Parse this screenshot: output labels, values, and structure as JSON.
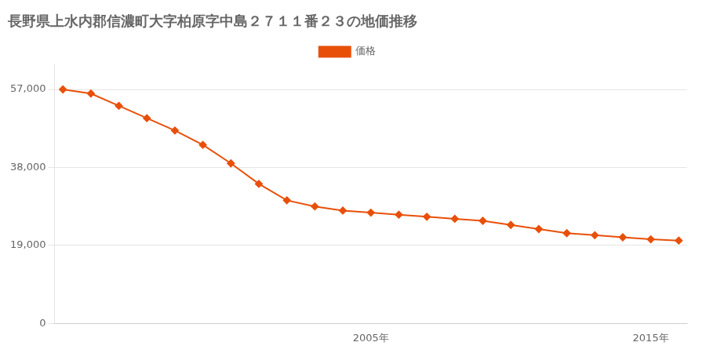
{
  "chart_data": {
    "type": "line",
    "title": "長野県上水内郡信濃町大字柏原字中島２７１１番２３の地価推移",
    "series": [
      {
        "name": "価格",
        "color": "#E8500A",
        "marker": "diamond",
        "values": [
          57000,
          56000,
          53000,
          50000,
          47000,
          43500,
          39000,
          34000,
          30000,
          28500,
          27500,
          27000,
          26500,
          26000,
          25500,
          25000,
          24000,
          23000,
          22000,
          21500,
          21000,
          20500,
          20200
        ]
      }
    ],
    "x": [
      1994,
      1995,
      1996,
      1997,
      1998,
      1999,
      2000,
      2001,
      2002,
      2003,
      2004,
      2005,
      2006,
      2007,
      2008,
      2009,
      2010,
      2011,
      2012,
      2013,
      2014,
      2015,
      2016
    ],
    "xlim": [
      1993.7,
      2016.3
    ],
    "xticks": [
      {
        "value": 2005,
        "label": "2005年"
      },
      {
        "value": 2015,
        "label": "2015年"
      }
    ],
    "ylim": [
      0,
      63000
    ],
    "yticks": [
      0,
      {
        "value": 19000,
        "label": "19,000"
      },
      {
        "value": 38000,
        "label": "38,000"
      },
      {
        "value": 57000,
        "label": "57,000"
      }
    ],
    "grid": "y",
    "legend": "top"
  }
}
